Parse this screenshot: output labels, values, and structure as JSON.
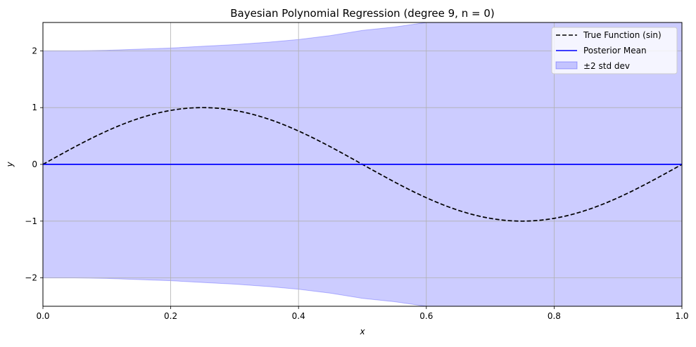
{
  "chart_data": {
    "type": "line",
    "title": "Bayesian Polynomial Regression (degree 9, n = 0)",
    "xlabel": "x",
    "ylabel": "y",
    "xlim": [
      0.0,
      1.0
    ],
    "ylim": [
      -2.5,
      2.5
    ],
    "grid": true,
    "legend_position": "top-right",
    "x_ticks": [
      0.0,
      0.2,
      0.4,
      0.6,
      0.8,
      1.0
    ],
    "x_tick_labels": [
      "0.0",
      "0.2",
      "0.4",
      "0.6",
      "0.8",
      "1.0"
    ],
    "y_ticks": [
      -2,
      -1,
      0,
      1,
      2
    ],
    "y_tick_labels": [
      "−2",
      "−1",
      "0",
      "1",
      "2"
    ],
    "series": [
      {
        "name": "True Function (sin)",
        "style": "dashed",
        "color": "#000000",
        "x": [
          0.0,
          0.05,
          0.1,
          0.15,
          0.2,
          0.25,
          0.3,
          0.35,
          0.4,
          0.45,
          0.5,
          0.55,
          0.6,
          0.65,
          0.7,
          0.75,
          0.8,
          0.85,
          0.9,
          0.95,
          1.0
        ],
        "y": [
          0.0,
          0.309,
          0.588,
          0.809,
          0.951,
          1.0,
          0.951,
          0.809,
          0.588,
          0.309,
          0.0,
          -0.309,
          -0.588,
          -0.809,
          -0.951,
          -1.0,
          -0.951,
          -0.809,
          -0.588,
          -0.309,
          0.0
        ]
      },
      {
        "name": "Posterior Mean",
        "style": "solid",
        "color": "#0000ff",
        "x": [
          0.0,
          1.0
        ],
        "y": [
          0.0,
          0.0
        ]
      }
    ],
    "band": {
      "name": "±2 std dev",
      "color": "#0000ff",
      "fill_opacity": 0.2,
      "x": [
        0.0,
        0.05,
        0.1,
        0.15,
        0.2,
        0.25,
        0.3,
        0.35,
        0.4,
        0.45,
        0.5,
        0.55,
        0.6,
        0.65,
        0.7,
        0.75,
        0.8,
        0.85,
        0.9,
        0.95,
        1.0
      ],
      "upper": [
        2.0,
        2.0,
        2.01,
        2.03,
        2.05,
        2.08,
        2.11,
        2.15,
        2.2,
        2.27,
        2.36,
        2.42,
        2.5,
        2.6,
        2.7,
        2.8,
        2.9,
        3.0,
        3.1,
        3.2,
        3.3
      ],
      "lower": [
        -2.0,
        -2.0,
        -2.01,
        -2.03,
        -2.05,
        -2.08,
        -2.11,
        -2.15,
        -2.2,
        -2.27,
        -2.36,
        -2.42,
        -2.5,
        -2.6,
        -2.7,
        -2.8,
        -2.9,
        -3.0,
        -3.1,
        -3.2,
        -3.3
      ]
    }
  }
}
